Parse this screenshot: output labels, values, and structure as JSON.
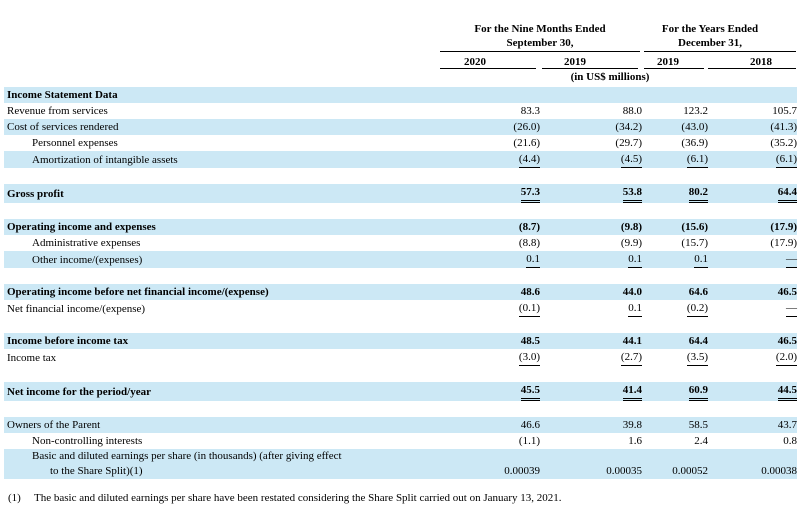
{
  "header": {
    "nine_months_line1": "For the Nine Months Ended",
    "nine_months_line2": "September 30,",
    "years_line1": "For the Years Ended",
    "years_line2": "December 31,",
    "col_2020": "2020",
    "col_2019a": "2019",
    "col_2019b": "2019",
    "col_2018": "2018",
    "units": "(in US$ millions)"
  },
  "rows": [
    {
      "label": "Income Statement Data",
      "values": [
        "",
        "",
        "",
        ""
      ]
    },
    {
      "label": "Revenue from services",
      "values": [
        "83.3",
        "88.0",
        "123.2",
        "105.7"
      ]
    },
    {
      "label": "Cost of services rendered",
      "values": [
        "(26.0)",
        "(34.2)",
        "(43.0)",
        "(41.3)"
      ]
    },
    {
      "label": "Personnel expenses",
      "values": [
        "(21.6)",
        "(29.7)",
        "(36.9)",
        "(35.2)"
      ]
    },
    {
      "label": "Amortization of intangible assets",
      "values": [
        "(4.4)",
        "(4.5)",
        "(6.1)",
        "(6.1)"
      ]
    },
    {
      "label": "Gross profit",
      "values": [
        "57.3",
        "53.8",
        "80.2",
        "64.4"
      ]
    },
    {
      "label": "Operating income and expenses",
      "values": [
        "(8.7)",
        "(9.8)",
        "(15.6)",
        "(17.9)"
      ]
    },
    {
      "label": "Administrative expenses",
      "values": [
        "(8.8)",
        "(9.9)",
        "(15.7)",
        "(17.9)"
      ]
    },
    {
      "label": "Other income/(expenses)",
      "values": [
        "0.1",
        "0.1",
        "0.1",
        "—"
      ]
    },
    {
      "label": "Operating income before net financial income/(expense)",
      "values": [
        "48.6",
        "44.0",
        "64.6",
        "46.5"
      ]
    },
    {
      "label": "Net financial income/(expense)",
      "values": [
        "(0.1)",
        "0.1",
        "(0.2)",
        "—"
      ]
    },
    {
      "label": "Income before income tax",
      "values": [
        "48.5",
        "44.1",
        "64.4",
        "46.5"
      ]
    },
    {
      "label": "Income tax",
      "values": [
        "(3.0)",
        "(2.7)",
        "(3.5)",
        "(2.0)"
      ]
    },
    {
      "label": "Net income for the period/year",
      "values": [
        "45.5",
        "41.4",
        "60.9",
        "44.5"
      ]
    },
    {
      "label": "Owners of the Parent",
      "values": [
        "46.6",
        "39.8",
        "58.5",
        "43.7"
      ]
    },
    {
      "label": "Non-controlling interests",
      "values": [
        "(1.1)",
        "1.6",
        "2.4",
        "0.8"
      ]
    },
    {
      "label": "Basic and diluted earnings per share (in thousands) (after giving effect",
      "label2": "to the Share Split)(1)",
      "values": [
        "0.00039",
        "0.00035",
        "0.00052",
        "0.00038"
      ]
    }
  ],
  "footnote": {
    "marker": "(1)",
    "text": "The basic and diluted earnings per share have been restated considering the Share Split carried out on January 13, 2021."
  }
}
